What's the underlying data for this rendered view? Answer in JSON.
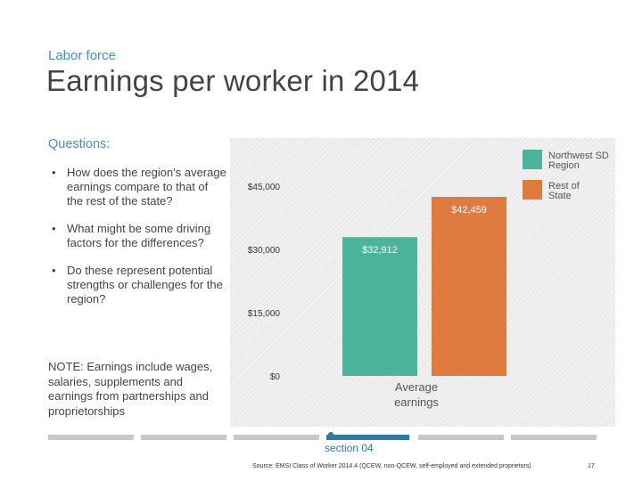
{
  "header": {
    "subtitle": "Labor force",
    "title": "Earnings per worker in 2014"
  },
  "questions": {
    "heading": "Questions:",
    "items": [
      "How does the region's average earnings compare to that of the rest of the state?",
      "What might be some driving factors for the differences?",
      "Do these represent potential strengths or challenges for the region?"
    ]
  },
  "note": "NOTE: Earnings include wages, salaries, supplements and earnings from partnerships and proprietorships",
  "chart_data": {
    "type": "bar",
    "categories": [
      "Average earnings"
    ],
    "series": [
      {
        "name": "Northwest SD Region",
        "values": [
          32912
        ],
        "color": "#4cb49d",
        "label": "$32,912"
      },
      {
        "name": "Rest of State",
        "values": [
          42459
        ],
        "color": "#e07b3f",
        "label": "$42,459"
      }
    ],
    "ylim": [
      0,
      45000
    ],
    "yticks": [
      {
        "value": 0,
        "label": "$0"
      },
      {
        "value": 15000,
        "label": "$15,000"
      },
      {
        "value": 30000,
        "label": "$30,000"
      },
      {
        "value": 45000,
        "label": "$45,000"
      }
    ],
    "legend_position": "top-right",
    "grid": false
  },
  "footer": {
    "section_label": "section 04",
    "source": "Source: EMSI Class of Worker 2014.4 (QCEW, non-QCEW, self-employed and extended proprietors)",
    "page_number": "17"
  }
}
